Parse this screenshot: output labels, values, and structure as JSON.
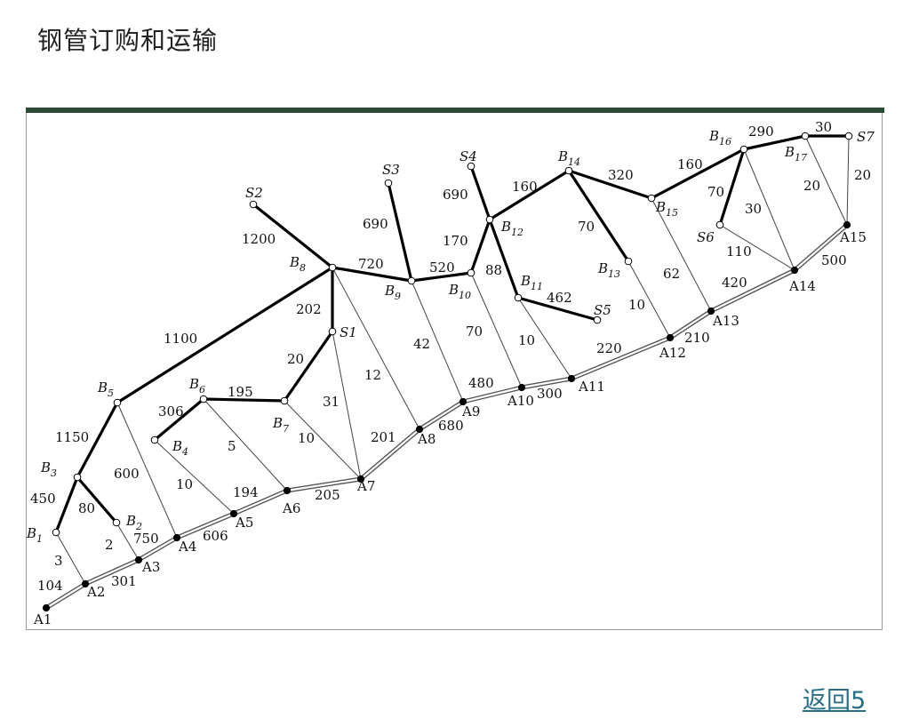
{
  "slide": {
    "title": "钢管订购和运输",
    "back_link": "返回5"
  },
  "network": {
    "nodes": [
      {
        "id": "A1",
        "label": "A1",
        "kind": "rail-stop"
      },
      {
        "id": "A2",
        "label": "A2",
        "kind": "rail-stop"
      },
      {
        "id": "A3",
        "label": "A3",
        "kind": "rail-stop"
      },
      {
        "id": "A4",
        "label": "A4",
        "kind": "rail-stop"
      },
      {
        "id": "A5",
        "label": "A5",
        "kind": "rail-stop"
      },
      {
        "id": "A6",
        "label": "A6",
        "kind": "rail-stop"
      },
      {
        "id": "A7",
        "label": "A7",
        "kind": "rail-stop"
      },
      {
        "id": "A8",
        "label": "A8",
        "kind": "rail-stop"
      },
      {
        "id": "A9",
        "label": "A9",
        "kind": "rail-stop"
      },
      {
        "id": "A10",
        "label": "A10",
        "kind": "rail-stop"
      },
      {
        "id": "A11",
        "label": "A11",
        "kind": "rail-stop"
      },
      {
        "id": "A12",
        "label": "A12",
        "kind": "rail-stop"
      },
      {
        "id": "A13",
        "label": "A13",
        "kind": "rail-stop"
      },
      {
        "id": "A14",
        "label": "A14",
        "kind": "rail-stop"
      },
      {
        "id": "A15",
        "label": "A15",
        "kind": "rail-stop"
      },
      {
        "id": "B1",
        "label": "B1",
        "kind": "junction"
      },
      {
        "id": "B2",
        "label": "B2",
        "kind": "junction"
      },
      {
        "id": "B3",
        "label": "B3",
        "kind": "junction"
      },
      {
        "id": "B4",
        "label": "B4",
        "kind": "junction"
      },
      {
        "id": "B5",
        "label": "B5",
        "kind": "junction"
      },
      {
        "id": "B6",
        "label": "B6",
        "kind": "junction"
      },
      {
        "id": "B7",
        "label": "B7",
        "kind": "junction"
      },
      {
        "id": "B8",
        "label": "B8",
        "kind": "junction"
      },
      {
        "id": "B9",
        "label": "B9",
        "kind": "junction"
      },
      {
        "id": "B10",
        "label": "B10",
        "kind": "junction"
      },
      {
        "id": "B11",
        "label": "B11",
        "kind": "junction"
      },
      {
        "id": "B12",
        "label": "B12",
        "kind": "junction"
      },
      {
        "id": "B13",
        "label": "B13",
        "kind": "junction"
      },
      {
        "id": "B14",
        "label": "B14",
        "kind": "junction"
      },
      {
        "id": "B15",
        "label": "B15",
        "kind": "junction"
      },
      {
        "id": "B16",
        "label": "B16",
        "kind": "junction"
      },
      {
        "id": "B17",
        "label": "B17",
        "kind": "junction"
      },
      {
        "id": "S1",
        "label": "S1",
        "kind": "plant"
      },
      {
        "id": "S2",
        "label": "S2",
        "kind": "plant"
      },
      {
        "id": "S3",
        "label": "S3",
        "kind": "plant"
      },
      {
        "id": "S4",
        "label": "S4",
        "kind": "plant"
      },
      {
        "id": "S5",
        "label": "S5",
        "kind": "plant"
      },
      {
        "id": "S6",
        "label": "S6",
        "kind": "plant"
      },
      {
        "id": "S7",
        "label": "S7",
        "kind": "plant"
      }
    ],
    "edges": [
      {
        "from": "A1",
        "to": "A2",
        "style": "pipeline",
        "label": "104"
      },
      {
        "from": "A2",
        "to": "A3",
        "style": "pipeline",
        "label": "301"
      },
      {
        "from": "A3",
        "to": "A4",
        "style": "pipeline",
        "label": "750"
      },
      {
        "from": "A4",
        "to": "A5",
        "style": "pipeline",
        "label": "606"
      },
      {
        "from": "A5",
        "to": "A6",
        "style": "pipeline",
        "label": "194"
      },
      {
        "from": "A6",
        "to": "A7",
        "style": "pipeline",
        "label": "205"
      },
      {
        "from": "A7",
        "to": "A8",
        "style": "pipeline",
        "label": "201"
      },
      {
        "from": "A8",
        "to": "A9",
        "style": "pipeline",
        "label": "680"
      },
      {
        "from": "A9",
        "to": "A10",
        "style": "pipeline",
        "label": "480"
      },
      {
        "from": "A10",
        "to": "A11",
        "style": "pipeline",
        "label": "300"
      },
      {
        "from": "A11",
        "to": "A12",
        "style": "pipeline",
        "label": "220"
      },
      {
        "from": "A12",
        "to": "A13",
        "style": "pipeline",
        "label": "210"
      },
      {
        "from": "A13",
        "to": "A14",
        "style": "pipeline",
        "label": "420"
      },
      {
        "from": "A14",
        "to": "A15",
        "style": "pipeline",
        "label": "500"
      },
      {
        "from": "B1",
        "to": "B3",
        "style": "railway",
        "label": "450"
      },
      {
        "from": "B3",
        "to": "B2",
        "style": "railway",
        "label": "80"
      },
      {
        "from": "B3",
        "to": "B5",
        "style": "railway",
        "label": "1150"
      },
      {
        "from": "B5",
        "to": "B8",
        "style": "railway",
        "label": "1100"
      },
      {
        "from": "S2",
        "to": "B8",
        "style": "railway",
        "label": "1200"
      },
      {
        "from": "B8",
        "to": "S1",
        "style": "railway",
        "label": "202"
      },
      {
        "from": "B8",
        "to": "B9",
        "style": "railway",
        "label": "720"
      },
      {
        "from": "S1",
        "to": "B7",
        "style": "railway",
        "label": "20"
      },
      {
        "from": "B6",
        "to": "B7",
        "style": "railway",
        "label": "195"
      },
      {
        "from": "B6",
        "to": "B4",
        "style": "railway",
        "label": "306"
      },
      {
        "from": "S3",
        "to": "B9",
        "style": "railway",
        "label": "690"
      },
      {
        "from": "B9",
        "to": "B10",
        "style": "railway",
        "label": "520"
      },
      {
        "from": "B10",
        "to": "B12",
        "style": "railway",
        "label": "170"
      },
      {
        "from": "S4",
        "to": "B12",
        "style": "railway",
        "label": "690"
      },
      {
        "from": "B12",
        "to": "B11",
        "style": "railway",
        "label": "88"
      },
      {
        "from": "B11",
        "to": "S5",
        "style": "railway",
        "label": "462"
      },
      {
        "from": "B12",
        "to": "B14",
        "style": "railway",
        "label": "160"
      },
      {
        "from": "B14",
        "to": "B13",
        "style": "railway",
        "label": "70"
      },
      {
        "from": "B14",
        "to": "B15",
        "style": "railway",
        "label": "320"
      },
      {
        "from": "B15",
        "to": "B16",
        "style": "railway",
        "label": "160"
      },
      {
        "from": "B16",
        "to": "S6",
        "style": "railway",
        "label": "70"
      },
      {
        "from": "B16",
        "to": "B17",
        "style": "railway",
        "label": "290"
      },
      {
        "from": "B17",
        "to": "S7",
        "style": "railway",
        "label": "30"
      },
      {
        "from": "B1",
        "to": "A2",
        "style": "road",
        "label": "3"
      },
      {
        "from": "B2",
        "to": "A3",
        "style": "road",
        "label": "2"
      },
      {
        "from": "B5",
        "to": "A4",
        "style": "road",
        "label": "600"
      },
      {
        "from": "B4",
        "to": "A5",
        "style": "road",
        "label": "10"
      },
      {
        "from": "B6",
        "to": "A6",
        "style": "road",
        "label": "5"
      },
      {
        "from": "B7",
        "to": "A7",
        "style": "road",
        "label": "10"
      },
      {
        "from": "S1",
        "to": "A7",
        "style": "road",
        "label": "31"
      },
      {
        "from": "B8",
        "to": "A8",
        "style": "road",
        "label": "12"
      },
      {
        "from": "B9",
        "to": "A9",
        "style": "road",
        "label": "42"
      },
      {
        "from": "B10",
        "to": "A10",
        "style": "road",
        "label": "70"
      },
      {
        "from": "B11",
        "to": "A11",
        "style": "road",
        "label": "10"
      },
      {
        "from": "B13",
        "to": "A12",
        "style": "road",
        "label": "10"
      },
      {
        "from": "B15",
        "to": "A13",
        "style": "road",
        "label": "62"
      },
      {
        "from": "S6",
        "to": "A14",
        "style": "road",
        "label": "110"
      },
      {
        "from": "B16",
        "to": "A14",
        "style": "road",
        "label": "30"
      },
      {
        "from": "B17",
        "to": "A15",
        "style": "road",
        "label": "20"
      },
      {
        "from": "S7",
        "to": "A15",
        "style": "road",
        "label": "20"
      }
    ]
  }
}
